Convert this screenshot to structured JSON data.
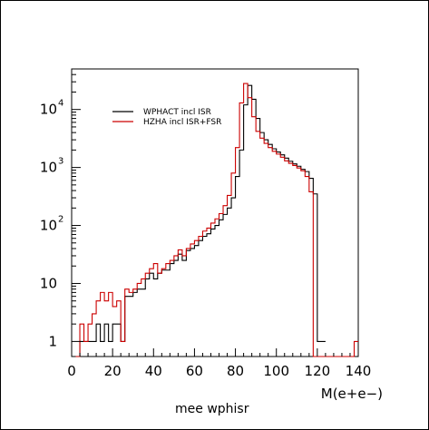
{
  "chart_data": {
    "type": "line",
    "xlabel": "M(e+e−)",
    "footer": "mee wphisr",
    "xlim": [
      0,
      140
    ],
    "ylim": [
      0.55,
      50000
    ],
    "yscale": "log",
    "grid": false,
    "legend_position": "top-left",
    "x_ticks": [
      "0",
      "20",
      "40",
      "60",
      "80",
      "100",
      "120",
      "140"
    ],
    "x_tick_values": [
      0,
      20,
      40,
      60,
      80,
      100,
      120,
      140
    ],
    "y_ticks": [
      {
        "value": 1,
        "mantissa": "1",
        "exp": ""
      },
      {
        "value": 10,
        "mantissa": "10",
        "exp": ""
      },
      {
        "value": 100,
        "mantissa": "10",
        "exp": "2"
      },
      {
        "value": 1000,
        "mantissa": "10",
        "exp": "3"
      },
      {
        "value": 10000,
        "mantissa": "10",
        "exp": "4"
      }
    ],
    "bin_width": 2,
    "series": [
      {
        "name": "WPHACT incl ISR",
        "color": "#000000",
        "x_start": 4,
        "values": [
          1,
          1,
          1,
          1,
          2,
          1,
          2,
          1,
          2,
          2,
          1,
          6,
          6,
          7,
          8,
          8,
          12,
          15,
          12,
          15,
          17,
          17,
          22,
          25,
          32,
          25,
          37,
          40,
          45,
          55,
          65,
          72,
          87,
          100,
          125,
          155,
          200,
          300,
          700,
          2000,
          12000,
          26000,
          15000,
          7000,
          4000,
          3000,
          2500,
          2100,
          1850,
          1650,
          1450,
          1280,
          1150,
          1050,
          930,
          850,
          650,
          350,
          1,
          1
        ]
      },
      {
        "name": "HZHA incl ISR+FSR",
        "color": "#cc0000",
        "x_start": 2,
        "values": [
          0.55,
          2,
          1,
          2,
          3,
          5,
          7,
          5,
          7,
          4,
          5,
          1,
          8,
          7,
          8,
          10,
          12,
          15,
          18,
          22,
          15,
          18,
          22,
          25,
          30,
          38,
          30,
          40,
          48,
          55,
          65,
          80,
          90,
          110,
          130,
          160,
          220,
          330,
          800,
          2200,
          13000,
          28000,
          16000,
          7500,
          4200,
          3200,
          2600,
          2200,
          1900,
          1700,
          1500,
          1300,
          1180,
          1080,
          980,
          880,
          700,
          380,
          0.55,
          0.55,
          0.55,
          0.55,
          0.55,
          0.55,
          0.55,
          0.55,
          0.55,
          0.55,
          1
        ]
      }
    ]
  }
}
